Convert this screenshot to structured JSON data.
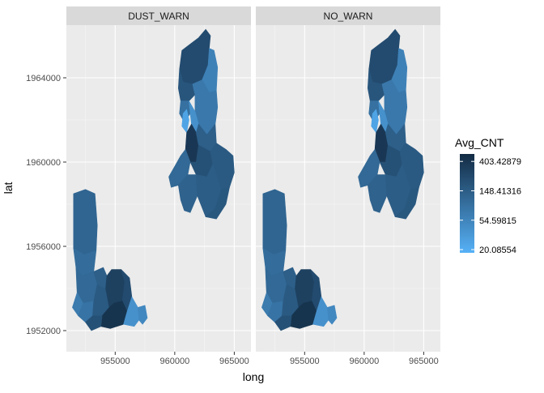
{
  "chart_data": {
    "type": "choropleth-map",
    "xlabel": "long",
    "ylabel": "lat",
    "facets": [
      "DUST_WARN",
      "NO_WARN"
    ],
    "x_ticks": [
      955000,
      960000,
      965000
    ],
    "x_tick_labels": [
      "955000",
      "960000",
      "965000"
    ],
    "y_ticks": [
      1952000,
      1956000,
      1960000,
      1964000
    ],
    "y_tick_labels": [
      "1952000",
      "1956000",
      "1960000",
      "1964000"
    ],
    "xlim": [
      950900,
      966400
    ],
    "ylim": [
      1951000,
      1966500
    ],
    "grid": true,
    "legend": {
      "title": "Avg_CNT",
      "placement": "right",
      "scale": "log",
      "breaks": [
        403.42879,
        148.41316,
        54.59815,
        20.08554
      ],
      "labels": [
        "403.42879",
        "148.41316",
        "54.59815",
        "20.08554"
      ],
      "range": [
        18,
        520
      ],
      "color_low": "#56B1F7",
      "color_high": "#132B43"
    },
    "regions": [
      {
        "id": "s1",
        "avg": 120,
        "poly": [
          [
            951500,
            1958500
          ],
          [
            952500,
            1958700
          ],
          [
            953300,
            1958500
          ],
          [
            953500,
            1957000
          ],
          [
            953400,
            1955800
          ],
          [
            952400,
            1955600
          ],
          [
            951500,
            1955900
          ]
        ]
      },
      {
        "id": "s2",
        "avg": 100,
        "poly": [
          [
            951500,
            1955900
          ],
          [
            952400,
            1955600
          ],
          [
            953400,
            1955800
          ],
          [
            953200,
            1954800
          ],
          [
            952200,
            1954600
          ],
          [
            951700,
            1955000
          ]
        ]
      },
      {
        "id": "s3",
        "avg": 110,
        "poly": [
          [
            951700,
            1955000
          ],
          [
            952200,
            1954600
          ],
          [
            953200,
            1954800
          ],
          [
            953500,
            1954200
          ],
          [
            953200,
            1953400
          ],
          [
            952300,
            1953300
          ],
          [
            951800,
            1953800
          ]
        ]
      },
      {
        "id": "s4",
        "avg": 70,
        "poly": [
          [
            951800,
            1953800
          ],
          [
            952300,
            1953300
          ],
          [
            951900,
            1952700
          ],
          [
            951400,
            1953100
          ]
        ]
      },
      {
        "id": "s5",
        "avg": 85,
        "poly": [
          [
            952300,
            1953300
          ],
          [
            953200,
            1953400
          ],
          [
            953100,
            1952700
          ],
          [
            952500,
            1952400
          ],
          [
            951900,
            1952700
          ]
        ]
      },
      {
        "id": "s6",
        "avg": 160,
        "poly": [
          [
            953200,
            1953400
          ],
          [
            953500,
            1954200
          ],
          [
            954200,
            1954000
          ],
          [
            954500,
            1953100
          ],
          [
            953900,
            1952700
          ],
          [
            953100,
            1952700
          ]
        ]
      },
      {
        "id": "s7",
        "avg": 140,
        "poly": [
          [
            953200,
            1954800
          ],
          [
            954000,
            1955000
          ],
          [
            954300,
            1954600
          ],
          [
            954200,
            1954000
          ],
          [
            953500,
            1954200
          ]
        ]
      },
      {
        "id": "s8",
        "avg": 300,
        "poly": [
          [
            954300,
            1954600
          ],
          [
            954700,
            1954900
          ],
          [
            955500,
            1954900
          ],
          [
            955800,
            1954300
          ],
          [
            955600,
            1953400
          ],
          [
            954900,
            1953300
          ],
          [
            954500,
            1953100
          ],
          [
            954200,
            1954000
          ]
        ]
      },
      {
        "id": "s9",
        "avg": 230,
        "poly": [
          [
            955500,
            1954900
          ],
          [
            956200,
            1954500
          ],
          [
            956400,
            1953600
          ],
          [
            956000,
            1952900
          ],
          [
            955600,
            1953400
          ],
          [
            955800,
            1954300
          ]
        ]
      },
      {
        "id": "s10",
        "avg": 420,
        "poly": [
          [
            953900,
            1952700
          ],
          [
            954500,
            1953100
          ],
          [
            954900,
            1953300
          ],
          [
            955600,
            1953400
          ],
          [
            956000,
            1952900
          ],
          [
            955700,
            1952300
          ],
          [
            954600,
            1952100
          ],
          [
            953800,
            1952200
          ]
        ]
      },
      {
        "id": "s11",
        "avg": 200,
        "poly": [
          [
            952500,
            1952400
          ],
          [
            953100,
            1952700
          ],
          [
            953900,
            1952700
          ],
          [
            953800,
            1952200
          ],
          [
            953000,
            1952000
          ]
        ]
      },
      {
        "id": "s12",
        "avg": 40,
        "poly": [
          [
            956000,
            1952900
          ],
          [
            956400,
            1953600
          ],
          [
            956900,
            1953100
          ],
          [
            957000,
            1952500
          ],
          [
            956600,
            1952200
          ],
          [
            955700,
            1952300
          ]
        ]
      },
      {
        "id": "s13",
        "avg": 50,
        "poly": [
          [
            956900,
            1953100
          ],
          [
            957500,
            1953200
          ],
          [
            957700,
            1952600
          ],
          [
            957300,
            1952300
          ],
          [
            957000,
            1952500
          ]
        ]
      },
      {
        "id": "n1",
        "avg": 230,
        "poly": [
          [
            960600,
            1965300
          ],
          [
            961300,
            1965600
          ],
          [
            962000,
            1965900
          ],
          [
            962600,
            1966300
          ],
          [
            963000,
            1966000
          ],
          [
            962900,
            1965400
          ],
          [
            962800,
            1964600
          ],
          [
            962300,
            1963900
          ],
          [
            961500,
            1963700
          ],
          [
            960700,
            1963800
          ],
          [
            960400,
            1964400
          ]
        ]
      },
      {
        "id": "n2",
        "avg": 60,
        "poly": [
          [
            962800,
            1964600
          ],
          [
            962900,
            1965400
          ],
          [
            963300,
            1965300
          ],
          [
            963600,
            1964500
          ],
          [
            963500,
            1963400
          ],
          [
            962900,
            1963300
          ],
          [
            962300,
            1963900
          ]
        ]
      },
      {
        "id": "n3",
        "avg": 180,
        "poly": [
          [
            960400,
            1964400
          ],
          [
            960700,
            1963800
          ],
          [
            961500,
            1963700
          ],
          [
            961700,
            1963200
          ],
          [
            961200,
            1962900
          ],
          [
            960500,
            1962900
          ],
          [
            960300,
            1963500
          ]
        ]
      },
      {
        "id": "n4",
        "avg": 75,
        "poly": [
          [
            961500,
            1963700
          ],
          [
            962300,
            1963900
          ],
          [
            962900,
            1963300
          ],
          [
            963500,
            1963400
          ],
          [
            963600,
            1962600
          ],
          [
            963400,
            1961800
          ],
          [
            962700,
            1961300
          ],
          [
            962000,
            1961800
          ],
          [
            961700,
            1962400
          ],
          [
            961700,
            1963200
          ]
        ]
      },
      {
        "id": "n5",
        "avg": 90,
        "poly": [
          [
            960500,
            1962900
          ],
          [
            961200,
            1962900
          ],
          [
            961300,
            1962300
          ],
          [
            960800,
            1961900
          ],
          [
            960400,
            1962300
          ]
        ]
      },
      {
        "id": "n6",
        "avg": 25,
        "poly": [
          [
            960700,
            1962300
          ],
          [
            961000,
            1962500
          ],
          [
            961200,
            1962000
          ],
          [
            961000,
            1961400
          ],
          [
            960600,
            1961700
          ]
        ]
      },
      {
        "id": "n7",
        "avg": 40,
        "poly": [
          [
            961200,
            1962900
          ],
          [
            961700,
            1962400
          ],
          [
            962000,
            1961800
          ],
          [
            961800,
            1961400
          ],
          [
            961400,
            1961800
          ],
          [
            961300,
            1962300
          ]
        ]
      },
      {
        "id": "n8",
        "avg": 380,
        "poly": [
          [
            961000,
            1961400
          ],
          [
            961400,
            1961800
          ],
          [
            961800,
            1961400
          ],
          [
            962000,
            1960800
          ],
          [
            961800,
            1960000
          ],
          [
            961300,
            1960000
          ],
          [
            960900,
            1960600
          ]
        ]
      },
      {
        "id": "n9",
        "avg": 140,
        "poly": [
          [
            962000,
            1961800
          ],
          [
            962700,
            1961300
          ],
          [
            963400,
            1961800
          ],
          [
            963500,
            1960900
          ],
          [
            963000,
            1960500
          ],
          [
            962000,
            1960800
          ],
          [
            961800,
            1961400
          ]
        ]
      },
      {
        "id": "n10",
        "avg": 200,
        "poly": [
          [
            961300,
            1960000
          ],
          [
            961800,
            1960000
          ],
          [
            962000,
            1960800
          ],
          [
            963000,
            1960500
          ],
          [
            963200,
            1959900
          ],
          [
            962700,
            1959300
          ],
          [
            961800,
            1959400
          ]
        ]
      },
      {
        "id": "n11",
        "avg": 160,
        "poly": [
          [
            963000,
            1960500
          ],
          [
            963500,
            1960900
          ],
          [
            964300,
            1960600
          ],
          [
            964900,
            1960300
          ],
          [
            965000,
            1959500
          ],
          [
            964600,
            1958800
          ],
          [
            963900,
            1958700
          ],
          [
            963200,
            1959900
          ]
        ]
      },
      {
        "id": "n12",
        "avg": 110,
        "poly": [
          [
            959500,
            1959300
          ],
          [
            960000,
            1959800
          ],
          [
            960500,
            1960300
          ],
          [
            960900,
            1960600
          ],
          [
            961300,
            1960000
          ],
          [
            961100,
            1959400
          ],
          [
            960300,
            1958900
          ],
          [
            959700,
            1958800
          ]
        ]
      },
      {
        "id": "n13",
        "avg": 130,
        "poly": [
          [
            960300,
            1958900
          ],
          [
            961100,
            1959400
          ],
          [
            961800,
            1959400
          ],
          [
            961900,
            1958400
          ],
          [
            961300,
            1957600
          ],
          [
            960800,
            1957700
          ],
          [
            960500,
            1958200
          ]
        ]
      },
      {
        "id": "n14",
        "avg": 150,
        "poly": [
          [
            961800,
            1959400
          ],
          [
            962700,
            1959300
          ],
          [
            963200,
            1959900
          ],
          [
            963900,
            1958700
          ],
          [
            963400,
            1957800
          ],
          [
            962600,
            1957400
          ],
          [
            961900,
            1958400
          ]
        ]
      },
      {
        "id": "n15",
        "avg": 170,
        "poly": [
          [
            962600,
            1957400
          ],
          [
            963400,
            1957800
          ],
          [
            963900,
            1958700
          ],
          [
            964600,
            1958800
          ],
          [
            964300,
            1958000
          ],
          [
            963500,
            1957300
          ]
        ]
      }
    ]
  }
}
